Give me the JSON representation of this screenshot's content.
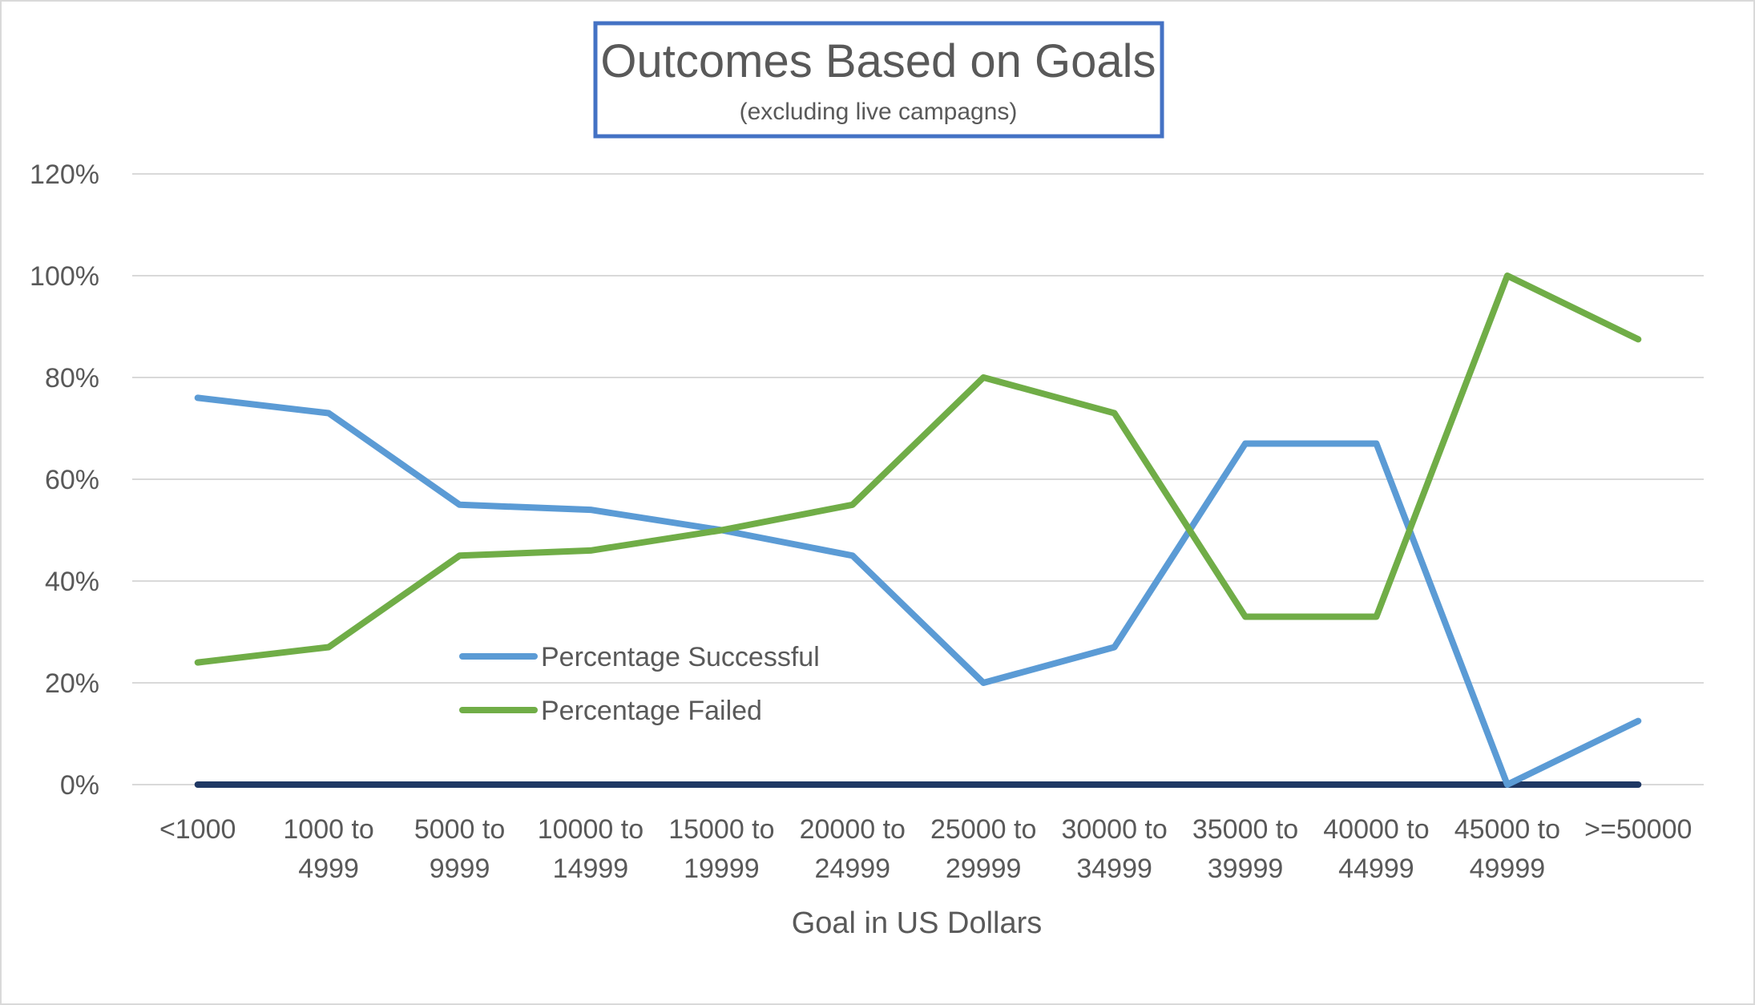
{
  "chart_data": {
    "type": "line",
    "title": "Outcomes Based on Goals",
    "subtitle": "(excluding live campagns)",
    "xlabel": "Goal in US Dollars",
    "ylabel": "",
    "categories": [
      [
        "<1000"
      ],
      [
        "1000 to",
        "4999"
      ],
      [
        "5000 to",
        "9999"
      ],
      [
        "10000 to",
        "14999"
      ],
      [
        "15000 to",
        "19999"
      ],
      [
        "20000 to",
        "24999"
      ],
      [
        "25000 to",
        "29999"
      ],
      [
        "30000 to",
        "34999"
      ],
      [
        "35000 to",
        "39999"
      ],
      [
        "40000 to",
        "44999"
      ],
      [
        "45000 to",
        "49999"
      ],
      [
        ">=50000"
      ]
    ],
    "ylim": [
      0,
      120
    ],
    "yticks": [
      "0%",
      "20%",
      "40%",
      "60%",
      "80%",
      "100%",
      "120%"
    ],
    "ytick_values": [
      0,
      20,
      40,
      60,
      80,
      100,
      120
    ],
    "grid": true,
    "legend_position": "center-left",
    "series": [
      {
        "name": "Percentage Successful",
        "color": "#5b9bd5",
        "values": [
          76,
          73,
          55,
          54,
          50,
          45,
          20,
          27,
          67,
          67,
          0,
          12.5
        ]
      },
      {
        "name": "Percentage Failed",
        "color": "#70ad47",
        "values": [
          24,
          27,
          45,
          46,
          50,
          55,
          80,
          73,
          33,
          33,
          100,
          87.5
        ]
      },
      {
        "name": "",
        "color": "#1f3864",
        "values": [
          0,
          0,
          0,
          0,
          0,
          0,
          0,
          0,
          0,
          0,
          0,
          0
        ]
      }
    ],
    "title_box_color": "#4472c4"
  }
}
